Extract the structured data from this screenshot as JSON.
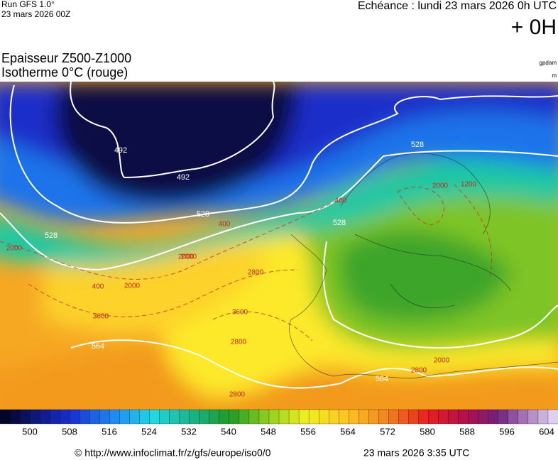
{
  "header": {
    "run": "Run GFS 1.0°",
    "run_date": "23 mars 2026 00Z",
    "echeance": "Echéance : lundi 23 mars 2026 0h UTC",
    "offset": "+ 0H",
    "title_line1": "Epaisseur Z500-Z1000",
    "title_line2": "Isotherme 0°C (rouge)",
    "unit1": "gpdam",
    "unit2": "m"
  },
  "map": {
    "thickness_labels": [
      492,
      492,
      528,
      528,
      528,
      528,
      564,
      564
    ],
    "isotherm_labels": [
      2000,
      400,
      2800,
      3600,
      2000,
      400,
      2000,
      2800,
      2000,
      2800,
      2000,
      1200,
      2000,
      400,
      3600,
      2800
    ]
  },
  "colorbar": {
    "labels": [
      500,
      508,
      516,
      524,
      532,
      540,
      548,
      556,
      564,
      572,
      580,
      588,
      596,
      604
    ]
  },
  "footer": {
    "url": "© http://www.infoclimat.fr/z/gfs/europe/iso0/0",
    "time": "23 mars 2026  3:35 UTC"
  }
}
